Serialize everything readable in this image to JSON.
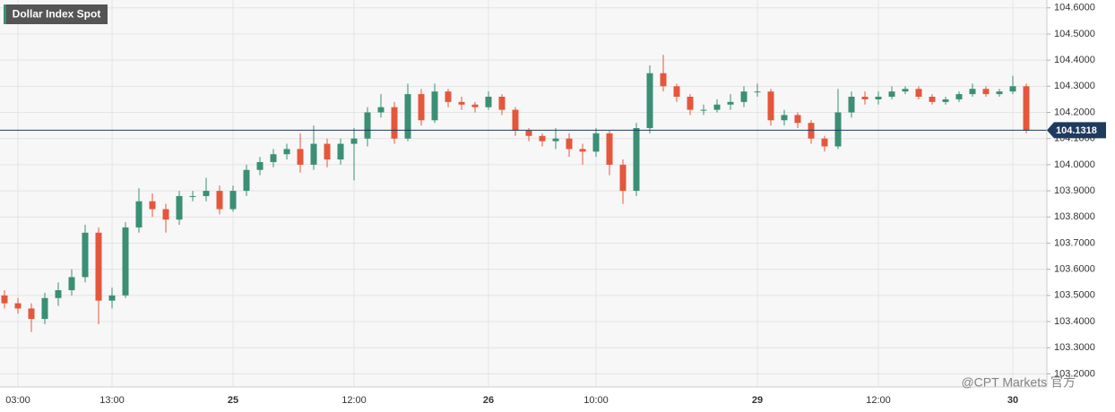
{
  "chart_data": {
    "type": "candlestick",
    "title": "Dollar Index Spot",
    "categories": [
      null,
      "03:00",
      null,
      null,
      null,
      null,
      null,
      null,
      "13:00",
      null,
      null,
      null,
      null,
      null,
      null,
      null,
      null,
      "25",
      null,
      null,
      null,
      null,
      null,
      null,
      null,
      null,
      "12:00",
      null,
      null,
      null,
      null,
      null,
      null,
      null,
      null,
      null,
      "26",
      null,
      null,
      null,
      null,
      null,
      null,
      null,
      "10:00",
      null,
      null,
      null,
      null,
      null,
      null,
      null,
      null,
      null,
      null,
      null,
      "29",
      null,
      null,
      null,
      null,
      null,
      null,
      null,
      null,
      "12:00",
      null,
      null,
      null,
      null,
      null,
      null,
      null,
      null,
      null,
      "30",
      null
    ],
    "open": [
      103.5,
      103.47,
      103.45,
      103.41,
      103.49,
      103.52,
      103.57,
      103.74,
      103.48,
      103.5,
      103.76,
      103.86,
      103.83,
      103.79,
      103.88,
      103.88,
      103.9,
      103.83,
      103.9,
      103.98,
      104.01,
      104.04,
      104.06,
      104.0,
      104.08,
      104.02,
      104.08,
      104.1,
      104.2,
      104.22,
      104.1,
      104.27,
      104.17,
      104.28,
      104.24,
      104.23,
      104.22,
      104.26,
      104.21,
      104.13,
      104.11,
      104.09,
      104.1,
      104.06,
      104.05,
      104.12,
      104.0,
      103.9,
      104.14,
      104.35,
      104.3,
      104.26,
      104.21,
      104.21,
      104.23,
      104.24,
      104.28,
      104.28,
      104.17,
      104.19,
      104.16,
      104.1,
      104.07,
      104.2,
      104.26,
      104.25,
      104.26,
      104.28,
      104.29,
      104.26,
      104.24,
      104.25,
      104.27,
      104.29,
      104.27,
      104.28,
      104.3
    ],
    "high": [
      103.52,
      103.49,
      103.47,
      103.51,
      103.55,
      103.6,
      103.77,
      103.76,
      103.53,
      103.78,
      103.91,
      103.89,
      103.85,
      103.9,
      103.9,
      103.95,
      103.92,
      103.92,
      104.0,
      104.03,
      104.06,
      104.08,
      104.12,
      104.15,
      104.1,
      104.1,
      104.14,
      104.22,
      104.27,
      104.24,
      104.31,
      104.29,
      104.31,
      104.29,
      104.26,
      104.24,
      104.28,
      104.27,
      104.22,
      104.14,
      104.12,
      104.14,
      104.12,
      104.08,
      104.14,
      104.13,
      104.02,
      104.16,
      104.38,
      104.42,
      104.31,
      104.27,
      104.23,
      104.25,
      104.27,
      104.3,
      104.31,
      104.29,
      104.21,
      104.2,
      104.17,
      104.11,
      104.29,
      104.28,
      104.28,
      104.28,
      104.3,
      104.3,
      104.3,
      104.27,
      104.26,
      104.28,
      104.31,
      104.3,
      104.29,
      104.34,
      104.31
    ],
    "low": [
      103.45,
      103.43,
      103.36,
      103.39,
      103.46,
      103.5,
      103.55,
      103.39,
      103.45,
      103.49,
      103.74,
      103.8,
      103.74,
      103.77,
      103.86,
      103.86,
      103.81,
      103.82,
      103.88,
      103.96,
      103.99,
      104.02,
      103.97,
      103.98,
      103.99,
      104.0,
      103.94,
      104.07,
      104.18,
      104.08,
      104.09,
      104.15,
      104.16,
      104.22,
      104.21,
      104.2,
      104.21,
      104.19,
      104.11,
      104.09,
      104.07,
      104.06,
      104.03,
      104.0,
      104.03,
      103.96,
      103.85,
      103.88,
      104.12,
      104.28,
      104.24,
      104.19,
      104.19,
      104.2,
      104.21,
      104.22,
      104.26,
      104.15,
      104.15,
      104.14,
      104.08,
      104.05,
      104.06,
      104.18,
      104.23,
      104.23,
      104.25,
      104.27,
      104.25,
      104.23,
      104.23,
      104.24,
      104.26,
      104.26,
      104.26,
      104.27,
      104.12
    ],
    "close": [
      103.47,
      103.45,
      103.41,
      103.49,
      103.52,
      103.57,
      103.74,
      103.48,
      103.5,
      103.76,
      103.86,
      103.83,
      103.79,
      103.88,
      103.88,
      103.9,
      103.83,
      103.9,
      103.98,
      104.01,
      104.04,
      104.06,
      104.0,
      104.08,
      104.02,
      104.08,
      104.1,
      104.2,
      104.22,
      104.1,
      104.27,
      104.17,
      104.28,
      104.24,
      104.23,
      104.22,
      104.26,
      104.21,
      104.13,
      104.11,
      104.09,
      104.1,
      104.06,
      104.05,
      104.12,
      104.0,
      103.9,
      104.14,
      104.35,
      104.3,
      104.26,
      104.21,
      104.21,
      104.23,
      104.24,
      104.28,
      104.28,
      104.17,
      104.19,
      104.16,
      104.1,
      104.07,
      104.2,
      104.26,
      104.25,
      104.26,
      104.28,
      104.29,
      104.26,
      104.24,
      104.25,
      104.27,
      104.29,
      104.27,
      104.28,
      104.3,
      104.13
    ],
    "up_color": "#3a8f75",
    "down_color": "#e4573d",
    "last_price": 104.1318,
    "ylim": [
      103.15,
      104.63
    ],
    "yticks": [
      {
        "value": 104.6,
        "label": "104.6000"
      },
      {
        "value": 104.5,
        "label": "104.5000"
      },
      {
        "value": 104.4,
        "label": "104.4000"
      },
      {
        "value": 104.3,
        "label": "104.3000"
      },
      {
        "value": 104.2,
        "label": "104.2000"
      },
      {
        "value": 104.1,
        "label": "104.1000"
      },
      {
        "value": 104.0,
        "label": "104.0000"
      },
      {
        "value": 103.9,
        "label": "103.9000"
      },
      {
        "value": 103.8,
        "label": "103.8000"
      },
      {
        "value": 103.7,
        "label": "103.7000"
      },
      {
        "value": 103.6,
        "label": "103.6000"
      },
      {
        "value": 103.5,
        "label": "103.5000"
      },
      {
        "value": 103.4,
        "label": "103.4000"
      },
      {
        "value": 103.3,
        "label": "103.3000"
      },
      {
        "value": 103.2,
        "label": "103.2000"
      }
    ],
    "grid": true
  },
  "watermark": "@CPT Markets 官方"
}
